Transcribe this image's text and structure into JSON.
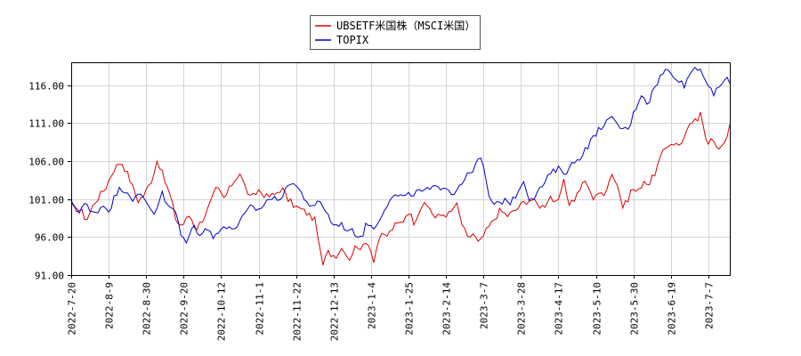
{
  "chart_data": {
    "type": "line",
    "title": "",
    "xlabel": "",
    "ylabel": "",
    "grid": true,
    "legend_placement": "top-center",
    "ylim": [
      91,
      119
    ],
    "y_ticks": [
      "91.00",
      "96.00",
      "101.00",
      "106.00",
      "111.00",
      "116.00"
    ],
    "y_tick_values": [
      91,
      96,
      101,
      106,
      111,
      116
    ],
    "x_ticks": [
      "2022-7-20",
      "2022-8-9",
      "2022-8-30",
      "2022-9-20",
      "2022-10-12",
      "2022-11-1",
      "2022-11-22",
      "2022-12-13",
      "2023-1-4",
      "2023-1-25",
      "2023-2-14",
      "2023-3-7",
      "2023-3-28",
      "2023-4-17",
      "2023-5-10",
      "2023-5-30",
      "2023-6-19",
      "2023-7-7"
    ],
    "x_tick_index": [
      0,
      14,
      28,
      42,
      56,
      70,
      84,
      98,
      112,
      126,
      140,
      154,
      168,
      182,
      196,
      210,
      224,
      238
    ],
    "n_points": 247,
    "series": [
      {
        "name": "UBSETF米国株（MSCI米国）",
        "color": "#dd0000",
        "knots": [
          [
            0,
            100.0
          ],
          [
            5,
            99.5
          ],
          [
            8,
            98.2
          ],
          [
            12,
            100.5
          ],
          [
            18,
            102.5
          ],
          [
            22,
            104.8
          ],
          [
            26,
            106.0
          ],
          [
            30,
            104.0
          ],
          [
            33,
            102.0
          ],
          [
            35,
            100.8
          ],
          [
            38,
            101.5
          ],
          [
            42,
            103.5
          ],
          [
            45,
            106.3
          ],
          [
            48,
            104.0
          ],
          [
            52,
            101.2
          ],
          [
            55,
            98.0
          ],
          [
            58,
            97.5
          ],
          [
            62,
            99.0
          ],
          [
            65,
            97.0
          ],
          [
            69,
            98.5
          ],
          [
            72,
            100.0
          ],
          [
            76,
            102.5
          ],
          [
            80,
            101.0
          ],
          [
            84,
            103.0
          ],
          [
            88,
            104.5
          ],
          [
            91,
            102.5
          ],
          [
            94,
            101.0
          ],
          [
            98,
            102.2
          ],
          [
            102,
            101.3
          ],
          [
            106,
            101.5
          ],
          [
            110,
            102.5
          ],
          [
            113,
            101.0
          ],
          [
            117,
            100.0
          ],
          [
            121,
            99.5
          ],
          [
            124,
            99.0
          ],
          [
            128,
            98.0
          ],
          [
            131,
            92.0
          ],
          [
            134,
            94.0
          ],
          [
            138,
            93.5
          ],
          [
            142,
            94.8
          ],
          [
            145,
            93.0
          ],
          [
            149,
            95.0
          ],
          [
            152,
            94.5
          ],
          [
            155,
            95.5
          ],
          [
            158,
            93.0
          ],
          [
            161,
            96.0
          ],
          [
            165,
            96.2
          ],
          [
            169,
            97.5
          ],
          [
            173,
            98.0
          ],
          [
            176,
            99.5
          ],
          [
            179,
            98.0
          ],
          [
            183,
            100.2
          ],
          [
            187,
            100.0
          ],
          [
            190,
            98.5
          ],
          [
            194,
            99.0
          ],
          [
            198,
            99.0
          ],
          [
            201,
            100.5
          ],
          [
            204,
            97.8
          ],
          [
            207,
            95.8
          ],
          [
            210,
            96.5
          ],
          [
            213,
            95.0
          ],
          [
            216,
            96.5
          ],
          [
            220,
            98.0
          ],
          [
            224,
            99.5
          ],
          [
            228,
            98.8
          ],
          [
            232,
            99.5
          ],
          [
            236,
            100.5
          ],
          [
            240,
            101.0
          ],
          [
            244,
            100.2
          ],
          [
            247,
            100.0
          ],
          [
            250,
            101.5
          ],
          [
            254,
            100.0
          ],
          [
            257,
            103.5
          ],
          [
            260,
            100.5
          ],
          [
            263,
            101.0
          ],
          [
            266,
            102.5
          ],
          [
            269,
            103.5
          ],
          [
            272,
            101.0
          ],
          [
            275,
            102.0
          ],
          [
            278,
            101.2
          ],
          [
            282,
            104.5
          ],
          [
            285,
            103.2
          ],
          [
            288,
            100.0
          ],
          [
            290,
            100.5
          ],
          [
            293,
            102.5
          ],
          [
            296,
            101.8
          ],
          [
            299,
            103.5
          ],
          [
            302,
            103.0
          ],
          [
            305,
            104.5
          ],
          [
            308,
            106.5
          ],
          [
            311,
            108.0
          ],
          [
            314,
            108.5
          ],
          [
            317,
            108.0
          ],
          [
            320,
            109.0
          ],
          [
            323,
            110.5
          ],
          [
            325,
            111.5
          ],
          [
            327,
            110.8
          ],
          [
            329,
            113.0
          ],
          [
            331,
            109.5
          ],
          [
            333,
            108.5
          ],
          [
            335,
            109.0
          ],
          [
            337,
            107.5
          ],
          [
            339,
            108.0
          ],
          [
            341,
            108.5
          ],
          [
            344,
            110.5
          ]
        ]
      },
      {
        "name": "TOPIX",
        "color": "#0000cc",
        "knots": [
          [
            0,
            100.5
          ],
          [
            4,
            99.5
          ],
          [
            7,
            100.5
          ],
          [
            10,
            99.0
          ],
          [
            13,
            99.5
          ],
          [
            16,
            100.2
          ],
          [
            19,
            99.5
          ],
          [
            22,
            101.5
          ],
          [
            25,
            102.5
          ],
          [
            28,
            102.0
          ],
          [
            31,
            101.0
          ],
          [
            35,
            101.5
          ],
          [
            38,
            100.5
          ],
          [
            42,
            99.0
          ],
          [
            45,
            102.0
          ],
          [
            48,
            100.0
          ],
          [
            52,
            99.5
          ],
          [
            55,
            96.0
          ],
          [
            58,
            95.5
          ],
          [
            61,
            97.5
          ],
          [
            64,
            96.5
          ],
          [
            68,
            97.2
          ],
          [
            71,
            95.8
          ],
          [
            75,
            97.5
          ],
          [
            79,
            97.0
          ],
          [
            83,
            97.5
          ],
          [
            87,
            99.0
          ],
          [
            90,
            100.0
          ],
          [
            94,
            99.5
          ],
          [
            98,
            101.0
          ],
          [
            102,
            101.0
          ],
          [
            106,
            101.5
          ],
          [
            110,
            103.5
          ],
          [
            113,
            102.5
          ],
          [
            117,
            101.0
          ],
          [
            121,
            99.5
          ],
          [
            124,
            101.0
          ],
          [
            127,
            99.5
          ],
          [
            131,
            97.5
          ],
          [
            134,
            97.8
          ],
          [
            138,
            97.0
          ],
          [
            142,
            96.5
          ],
          [
            145,
            96.0
          ],
          [
            148,
            98.0
          ],
          [
            151,
            97.0
          ],
          [
            155,
            99.0
          ],
          [
            159,
            101.0
          ],
          [
            163,
            101.5
          ],
          [
            167,
            101.2
          ],
          [
            171,
            101.8
          ],
          [
            175,
            102.0
          ],
          [
            179,
            102.2
          ],
          [
            183,
            102.5
          ],
          [
            187,
            102.8
          ],
          [
            191,
            101.5
          ],
          [
            194,
            103.0
          ],
          [
            198,
            104.0
          ],
          [
            202,
            105.5
          ],
          [
            205,
            106.5
          ],
          [
            208,
            102.0
          ],
          [
            211,
            100.0
          ],
          [
            214,
            100.5
          ],
          [
            217,
            101.0
          ],
          [
            220,
            100.5
          ],
          [
            223,
            102.0
          ],
          [
            226,
            103.5
          ],
          [
            229,
            101.0
          ],
          [
            232,
            101.5
          ],
          [
            236,
            103.0
          ],
          [
            240,
            104.5
          ],
          [
            244,
            105.0
          ],
          [
            247,
            104.5
          ],
          [
            250,
            105.5
          ],
          [
            254,
            106.5
          ],
          [
            258,
            108.0
          ],
          [
            262,
            109.5
          ],
          [
            266,
            111.0
          ],
          [
            270,
            111.5
          ],
          [
            274,
            110.5
          ],
          [
            278,
            110.0
          ],
          [
            282,
            113.0
          ],
          [
            285,
            115.0
          ],
          [
            288,
            113.5
          ],
          [
            291,
            115.5
          ],
          [
            294,
            117.0
          ],
          [
            297,
            118.0
          ],
          [
            300,
            117.5
          ],
          [
            303,
            117.0
          ],
          [
            306,
            115.8
          ],
          [
            309,
            117.5
          ],
          [
            312,
            118.5
          ],
          [
            315,
            118.0
          ],
          [
            318,
            116.0
          ],
          [
            321,
            114.5
          ],
          [
            324,
            116.0
          ],
          [
            327,
            117.0
          ],
          [
            329,
            116.0
          ]
        ]
      }
    ]
  }
}
